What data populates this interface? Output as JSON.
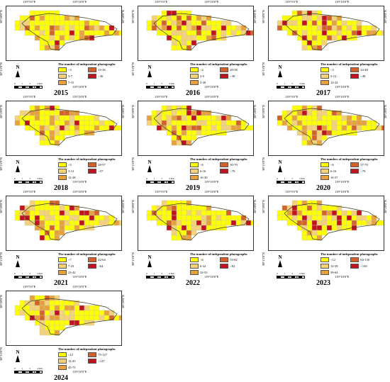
{
  "coords": {
    "lon_left": "119°5'0\"E",
    "lon_right": "119°10'0\"E",
    "lat_top": "30°20'0\"N",
    "lat_bottom": "30°15'0\"N"
  },
  "scale": {
    "ticks": [
      "0",
      "1",
      "2",
      "4 Km"
    ]
  },
  "north_label": "N",
  "legend_title": "The number of independent photographs",
  "colors": [
    "#ffff00",
    "#f5d27a",
    "#e8a03c",
    "#d2612a",
    "#c1121f"
  ],
  "panels": [
    {
      "year": "2015",
      "legend": [
        "<3",
        "3-7",
        "7-15",
        "15-36",
        ">36"
      ]
    },
    {
      "year": "2016",
      "legend": [
        "<2",
        "2-5",
        "5-20",
        "20-38",
        ">38"
      ]
    },
    {
      "year": "2017",
      "legend": [
        "<3",
        "3-12",
        "12-24",
        "24-48",
        ">48"
      ]
    },
    {
      "year": "2018",
      "legend": [
        "<3",
        "3-12",
        "12-28",
        "28-57",
        ">57"
      ]
    },
    {
      "year": "2019",
      "legend": [
        "<6",
        "6-16",
        "16-30",
        "30-70",
        ">70"
      ]
    },
    {
      "year": "2020",
      "legend": [
        "<6",
        "6-16",
        "16-37",
        "37-70",
        ">70"
      ]
    },
    {
      "year": "2021",
      "legend": [
        "<7",
        "7-23",
        "23-42",
        "42-64",
        ">64"
      ]
    },
    {
      "year": "2022",
      "legend": [
        "<6",
        "6-32",
        "32-53",
        "53-82",
        ">82"
      ]
    },
    {
      "year": "2023",
      "legend": [
        "<12",
        "12-39",
        "39-64",
        "64-130",
        ">130"
      ]
    },
    {
      "year": "2024",
      "legend": [
        "<12",
        "12-43",
        "43-75",
        "75-127",
        ">127"
      ]
    }
  ]
}
